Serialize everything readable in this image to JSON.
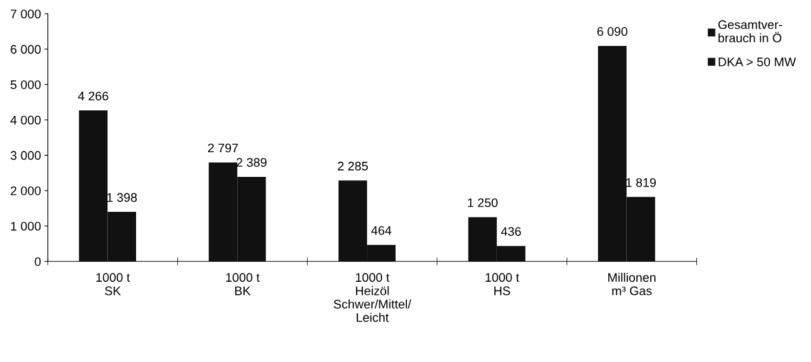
{
  "chart_data": {
    "type": "bar",
    "categories": [
      "1000 t\nSK",
      "1000 t\nBK",
      "1000 t\nHeizöl\nSchwer/Mittel/\nLeicht",
      "1000 t\nHS",
      "Millionen\nm³ Gas"
    ],
    "series": [
      {
        "name": "Gesamtver-\nbrauch in Ö",
        "color": "#111111",
        "values": [
          4266,
          2797,
          2285,
          1250,
          6090
        ],
        "value_labels": [
          "4 266",
          "2 797",
          "2 285",
          "1 250",
          "6 090"
        ]
      },
      {
        "name": "DKA > 50 MW",
        "color": "#111111",
        "values": [
          1398,
          2389,
          464,
          436,
          1819
        ],
        "value_labels": [
          "1 398",
          "2 389",
          "464",
          "436",
          "1 819"
        ]
      }
    ],
    "ylim": [
      0,
      7000
    ],
    "yticks": [
      {
        "value": 0,
        "label": "0"
      },
      {
        "value": 1000,
        "label": "1 000"
      },
      {
        "value": 2000,
        "label": "2 000"
      },
      {
        "value": 3000,
        "label": "3 000"
      },
      {
        "value": 4000,
        "label": "4 000"
      },
      {
        "value": 5000,
        "label": "5 000"
      },
      {
        "value": 6000,
        "label": "6 000"
      },
      {
        "value": 7000,
        "label": "7 000"
      }
    ],
    "grid": false,
    "legend": "top right"
  }
}
